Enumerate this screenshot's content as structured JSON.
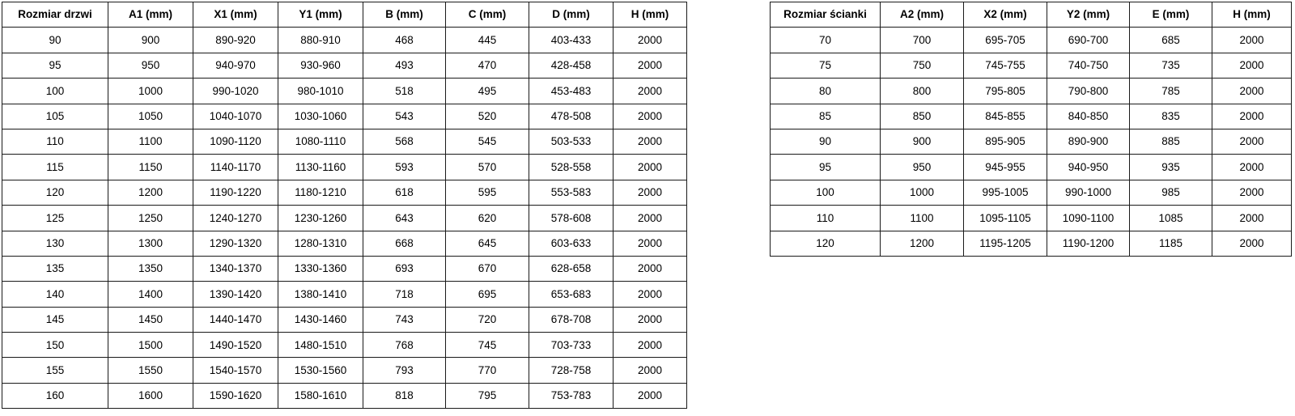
{
  "page": {
    "background_color": "#ffffff",
    "border_color": "#1a1a1a",
    "text_color": "#000000"
  },
  "tables": {
    "door": {
      "headers": [
        "Rozmiar drzwi",
        "A1 (mm)",
        "X1 (mm)",
        "Y1 (mm)",
        "B (mm)",
        "C (mm)",
        "D (mm)",
        "H (mm)"
      ],
      "rows": [
        [
          "90",
          "900",
          "890-920",
          "880-910",
          "468",
          "445",
          "403-433",
          "2000"
        ],
        [
          "95",
          "950",
          "940-970",
          "930-960",
          "493",
          "470",
          "428-458",
          "2000"
        ],
        [
          "100",
          "1000",
          "990-1020",
          "980-1010",
          "518",
          "495",
          "453-483",
          "2000"
        ],
        [
          "105",
          "1050",
          "1040-1070",
          "1030-1060",
          "543",
          "520",
          "478-508",
          "2000"
        ],
        [
          "110",
          "1100",
          "1090-1120",
          "1080-1110",
          "568",
          "545",
          "503-533",
          "2000"
        ],
        [
          "115",
          "1150",
          "1140-1170",
          "1130-1160",
          "593",
          "570",
          "528-558",
          "2000"
        ],
        [
          "120",
          "1200",
          "1190-1220",
          "1180-1210",
          "618",
          "595",
          "553-583",
          "2000"
        ],
        [
          "125",
          "1250",
          "1240-1270",
          "1230-1260",
          "643",
          "620",
          "578-608",
          "2000"
        ],
        [
          "130",
          "1300",
          "1290-1320",
          "1280-1310",
          "668",
          "645",
          "603-633",
          "2000"
        ],
        [
          "135",
          "1350",
          "1340-1370",
          "1330-1360",
          "693",
          "670",
          "628-658",
          "2000"
        ],
        [
          "140",
          "1400",
          "1390-1420",
          "1380-1410",
          "718",
          "695",
          "653-683",
          "2000"
        ],
        [
          "145",
          "1450",
          "1440-1470",
          "1430-1460",
          "743",
          "720",
          "678-708",
          "2000"
        ],
        [
          "150",
          "1500",
          "1490-1520",
          "1480-1510",
          "768",
          "745",
          "703-733",
          "2000"
        ],
        [
          "155",
          "1550",
          "1540-1570",
          "1530-1560",
          "793",
          "770",
          "728-758",
          "2000"
        ],
        [
          "160",
          "1600",
          "1590-1620",
          "1580-1610",
          "818",
          "795",
          "753-783",
          "2000"
        ]
      ]
    },
    "panel": {
      "headers": [
        "Rozmiar ścianki",
        "A2 (mm)",
        "X2 (mm)",
        "Y2 (mm)",
        "E (mm)",
        "H (mm)"
      ],
      "rows": [
        [
          "70",
          "700",
          "695-705",
          "690-700",
          "685",
          "2000"
        ],
        [
          "75",
          "750",
          "745-755",
          "740-750",
          "735",
          "2000"
        ],
        [
          "80",
          "800",
          "795-805",
          "790-800",
          "785",
          "2000"
        ],
        [
          "85",
          "850",
          "845-855",
          "840-850",
          "835",
          "2000"
        ],
        [
          "90",
          "900",
          "895-905",
          "890-900",
          "885",
          "2000"
        ],
        [
          "95",
          "950",
          "945-955",
          "940-950",
          "935",
          "2000"
        ],
        [
          "100",
          "1000",
          "995-1005",
          "990-1000",
          "985",
          "2000"
        ],
        [
          "110",
          "1100",
          "1095-1105",
          "1090-1100",
          "1085",
          "2000"
        ],
        [
          "120",
          "1200",
          "1195-1205",
          "1190-1200",
          "1185",
          "2000"
        ]
      ]
    }
  }
}
